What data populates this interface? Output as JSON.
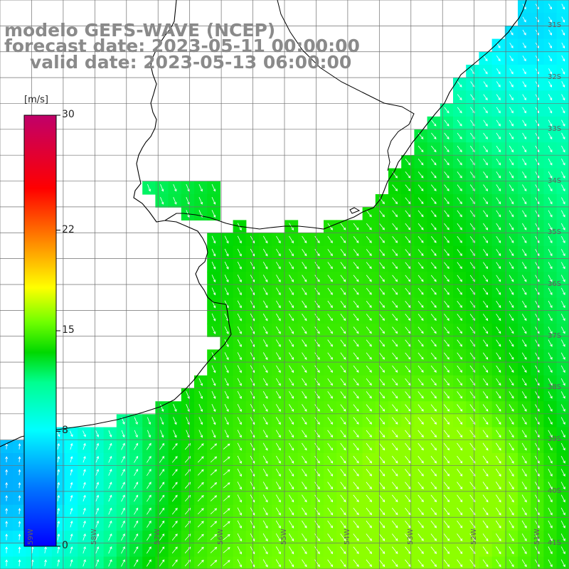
{
  "header": {
    "model": "modelo GEFS-WAVE (NCEP)",
    "forecast": "forecast date: 2023-05-11 00:00:00",
    "valid": "valid date: 2023-05-13 06:00:00"
  },
  "colorbar": {
    "unit": "[m/s]",
    "min": 0,
    "max": 30,
    "ticks": [
      "30",
      "22",
      "15",
      "8",
      "0"
    ],
    "tick_values": [
      30,
      22,
      15,
      8,
      0
    ],
    "colors": [
      "#0000ff",
      "#0080ff",
      "#00ffff",
      "#00ff80",
      "#00d000",
      "#80ff00",
      "#ffff00",
      "#ff8000",
      "#ff0000",
      "#c00060"
    ]
  },
  "map": {
    "projection": "lat-lon",
    "lon_range": [
      -59.5,
      -50.5
    ],
    "lat_range": [
      -41.5,
      -30.5
    ],
    "lat_labels": [
      "31S",
      "32S",
      "33S",
      "34S",
      "35S",
      "36S",
      "37S",
      "38S",
      "39S",
      "40S",
      "41S"
    ],
    "lat_values": [
      -31,
      -32,
      -33,
      -34,
      -35,
      -36,
      -37,
      -38,
      -39,
      -40,
      -41
    ],
    "lon_labels": [
      "59W",
      "58W",
      "57W",
      "56W",
      "55W",
      "54W",
      "53W",
      "52W",
      "51W"
    ],
    "lon_values": [
      -59,
      -58,
      -57,
      -56,
      -55,
      -54,
      -53,
      -52,
      -51
    ],
    "land_color": "#ffffff",
    "coast_color": "#000000",
    "grid_color": "#707070",
    "arrow_color": "#ffffff"
  }
}
